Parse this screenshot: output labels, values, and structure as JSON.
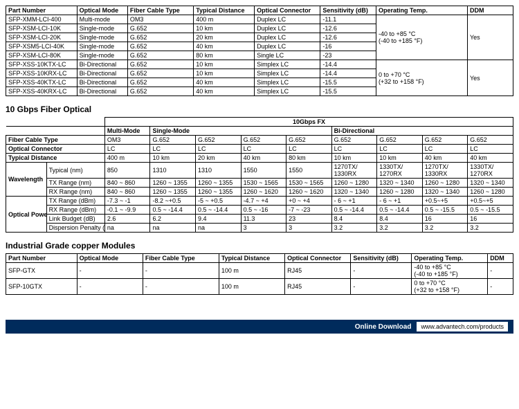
{
  "table1": {
    "headers": [
      "Part Number",
      "Optical Mode",
      "Fiber Cable Type",
      "Typical Distance",
      "Optical Connector",
      "Sensitivity (dB)",
      "Operating Temp.",
      "DDM"
    ],
    "rows": [
      [
        "SFP-XMM-LCI-400",
        "Multi-mode",
        "OM3",
        "400 m",
        "Duplex LC",
        "-11.1"
      ],
      [
        "SFP-XSM-LCI-10K",
        "Single-mode",
        "G.652",
        "10 km",
        "Duplex LC",
        "-12.6"
      ],
      [
        "SFP-XSM-LCI-20K",
        "Single-mode",
        "G.652",
        "20 km",
        "Duplex LC",
        "-12.6"
      ],
      [
        "SFP-XSM5-LCI-40K",
        "Single-mode",
        "G.652",
        "40 km",
        "Duplex LC",
        "-16"
      ],
      [
        "SFP-XSM-LCI-80K",
        "Single-mode",
        "G.652",
        "80 km",
        "Single LC",
        "-23"
      ],
      [
        "SFP-XSS-10KTX-LC",
        "Bi-Directional",
        "G.652",
        "10 km",
        "Simplex LC",
        "-14.4"
      ],
      [
        "SFP-XSS-10KRX-LC",
        "Bi-Directional",
        "G.652",
        "10 km",
        "Simplex LC",
        "-14.4"
      ],
      [
        "SFP-XSS-40KTX-LC",
        "Bi-Directional",
        "G.652",
        "40 km",
        "Simplex LC",
        "-15.5"
      ],
      [
        "SFP-XSS-40KRX-LC",
        "Bi-Directional",
        "G.652",
        "40 km",
        "Simplex LC",
        "-15.5"
      ]
    ],
    "group1": {
      "temp": "-40 to +85 °C\n(-40 to +185 °F)",
      "ddm": "Yes"
    },
    "group2": {
      "temp": "0 to +70 °C\n(+32 to +158 °F)",
      "ddm": "Yes"
    }
  },
  "section2_title": "10 Gbps Fiber Optical",
  "table2": {
    "super_header": "10Gbps FX",
    "mode_headers": [
      "Multi-Mode",
      "Single-Mode",
      "Bi-Directional"
    ],
    "row_labels": {
      "fiber": "Fiber Cable Type",
      "connector": "Optical Connector",
      "distance": "Typical Distance",
      "wavelength": "Wavelength",
      "typ": "Typical (nm)",
      "txr": "TX Range (nm)",
      "rxr": "RX Range (nm)",
      "power": "Optical Power",
      "txd": "TX Range (dBm)",
      "rxd": "RX Range (dBm)",
      "link": "Link Budget (dB)",
      "disp": "Dispersion Penalty (dB)"
    },
    "cols": {
      "fiber": [
        "OM3",
        "G.652",
        "G.652",
        "G.652",
        "G.652",
        "G.652",
        "G.652",
        "G.652",
        "G.652"
      ],
      "connector": [
        "LC",
        "LC",
        "LC",
        "LC",
        "LC",
        "LC",
        "LC",
        "LC",
        "LC"
      ],
      "distance": [
        "400 m",
        "10 km",
        "20 km",
        "40 km",
        "80 km",
        "10 km",
        "10 km",
        "40 km",
        "40 km"
      ],
      "typ": [
        "850",
        "1310",
        "1310",
        "1550",
        "1550",
        "1270TX/ 1330RX",
        "1330TX/ 1270RX",
        "1270TX/ 1330RX",
        "1330TX/ 1270RX"
      ],
      "txr": [
        "840 ~ 860",
        "1260 ~ 1355",
        "1260 ~ 1355",
        "1530 ~ 1565",
        "1530 ~ 1565",
        "1260 ~ 1280",
        "1320 ~ 1340",
        "1260 ~ 1280",
        "1320 ~ 1340"
      ],
      "rxr": [
        "840 ~ 860",
        "1260 ~ 1355",
        "1260 ~ 1355",
        "1260 ~ 1620",
        "1260 ~ 1620",
        "1320 ~ 1340",
        "1260 ~ 1280",
        "1320 ~ 1340",
        "1260 ~ 1280"
      ],
      "txd": [
        "-7.3 ~ -1",
        "-8.2 ~+0.5",
        "-5 ~ +0.5",
        "-4.7 ~ +4",
        "+0 ~ +4",
        "- 6 ~ +1",
        "- 6 ~ +1",
        "+0.5~+5",
        "+0.5~+5"
      ],
      "rxd": [
        "-0.1 ~ -9.9",
        "0.5 ~ -14.4",
        "0.5 ~ -14.4",
        "0.5 ~ -16",
        "-7 ~ -23",
        "0.5 ~ -14.4",
        "0.5 ~ -14.4",
        "0.5 ~ -15.5",
        "0.5 ~ -15.5"
      ],
      "link": [
        "2.6",
        "6.2",
        "9.4",
        "11.3",
        "23",
        "8.4",
        "8.4",
        "16",
        "16"
      ],
      "disp": [
        "na",
        "na",
        "na",
        "3",
        "3",
        "3.2",
        "3.2",
        "3.2",
        "3.2"
      ]
    }
  },
  "section3_title": "Industrial Grade copper Modules",
  "table3": {
    "headers": [
      "Part Number",
      "Optical Mode",
      "Fiber Cable Type",
      "Typical Distance",
      "Optical Connector",
      "Sensitivity (dB)",
      "Operating Temp.",
      "DDM"
    ],
    "rows": [
      [
        "SFP-GTX",
        "-",
        "-",
        "100 m",
        "RJ45",
        "-",
        "-40 to +85 °C\n(-40 to +185 °F)",
        "-"
      ],
      [
        "SFP-10GTX",
        "-",
        "-",
        "100 m",
        "RJ45",
        "-",
        "0 to +70 °C\n(+32 to +158 °F)",
        "-"
      ]
    ]
  },
  "footer": {
    "label": "Online Download",
    "url": "www.advantech.com/products"
  }
}
